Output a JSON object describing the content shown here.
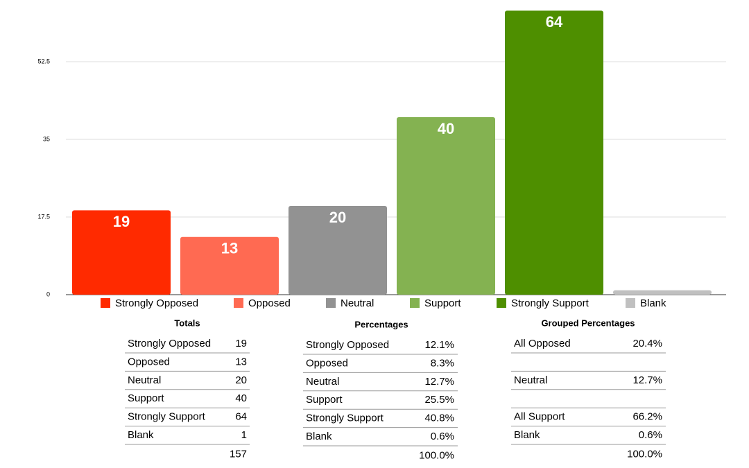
{
  "chart_data": {
    "type": "bar",
    "categories": [
      "Strongly Opposed",
      "Opposed",
      "Neutral",
      "Support",
      "Strongly Support",
      "Blank"
    ],
    "values": [
      19,
      13,
      20,
      40,
      64,
      1
    ],
    "value_labels": [
      "19",
      "13",
      "20",
      "40",
      "64",
      null
    ],
    "colors": [
      "#ff2a00",
      "#ff6a52",
      "#929292",
      "#84b251",
      "#4e8f00",
      "#c0c0c0"
    ],
    "ylim": [
      0,
      65
    ],
    "yticks": [
      0,
      17.5,
      35,
      52.5
    ],
    "grid": true
  },
  "tables": [
    {
      "title": "Totals",
      "rows": [
        [
          "Strongly Opposed",
          19
        ],
        [
          "Opposed",
          13
        ],
        [
          "Neutral",
          20
        ],
        [
          "Support",
          40
        ],
        [
          "Strongly Support",
          64
        ],
        [
          "Blank",
          1
        ]
      ],
      "total": 157
    },
    {
      "title": "Percentages",
      "rows": [
        [
          "Strongly Opposed",
          "12.1%"
        ],
        [
          "Opposed",
          "8.3%"
        ],
        [
          "Neutral",
          "12.7%"
        ],
        [
          "Support",
          "25.5%"
        ],
        [
          "Strongly Support",
          "40.8%"
        ],
        [
          "Blank",
          "0.6%"
        ]
      ],
      "total": "100.0%"
    },
    {
      "title": "Grouped Percentages",
      "rows": [
        [
          "All Opposed",
          "20.4%"
        ],
        null,
        [
          "Neutral",
          "12.7%"
        ],
        null,
        [
          "All Support",
          "66.2%"
        ],
        [
          "Blank",
          "0.6%"
        ]
      ],
      "total": "100.0%"
    }
  ]
}
